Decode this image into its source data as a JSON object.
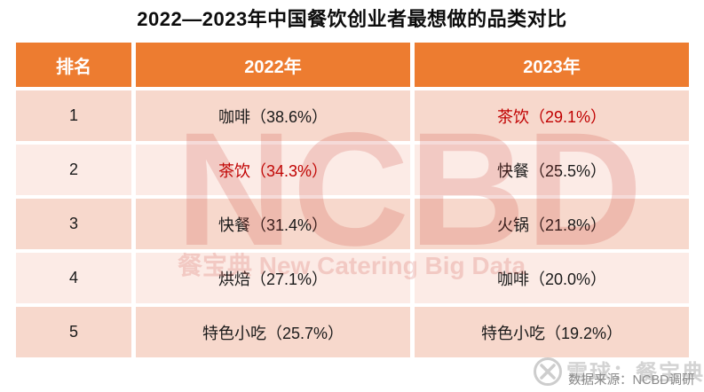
{
  "title": "2022—2023年中国餐饮创业者最想做的品类对比",
  "table": {
    "headers": [
      "排名",
      "2022年",
      "2023年"
    ],
    "rows": [
      {
        "rank": "1",
        "y2022": {
          "text": "咖啡（38.6%）",
          "highlight": false
        },
        "y2023": {
          "text": "茶饮（29.1%）",
          "highlight": true
        }
      },
      {
        "rank": "2",
        "y2022": {
          "text": "茶饮（34.3%）",
          "highlight": true
        },
        "y2023": {
          "text": "快餐（25.5%）",
          "highlight": false
        }
      },
      {
        "rank": "3",
        "y2022": {
          "text": "快餐（31.4%）",
          "highlight": false
        },
        "y2023": {
          "text": "火锅（21.8%）",
          "highlight": false
        }
      },
      {
        "rank": "4",
        "y2022": {
          "text": "烘焙（27.1%）",
          "highlight": false
        },
        "y2023": {
          "text": "咖啡（20.0%）",
          "highlight": false
        }
      },
      {
        "rank": "5",
        "y2022": {
          "text": "特色小吃（25.7%）",
          "highlight": false
        },
        "y2023": {
          "text": "特色小吃（19.2%）",
          "highlight": false
        }
      }
    ]
  },
  "watermark": {
    "big": "NCBD",
    "sub": "餐宝典 New Catering Big Data"
  },
  "footer": {
    "watermark_text": "雪球：餐宝典",
    "source_text": "数据来源：NCBD调研"
  },
  "colors": {
    "header_bg": "#ed7c30",
    "row_odd": "#f7d8cc",
    "row_even": "#fcebe6",
    "highlight": "#c00000",
    "watermark": "rgba(201,48,38,0.18)",
    "footer_light": "#d3d3d3",
    "footer_dark": "#8a8a8a"
  }
}
